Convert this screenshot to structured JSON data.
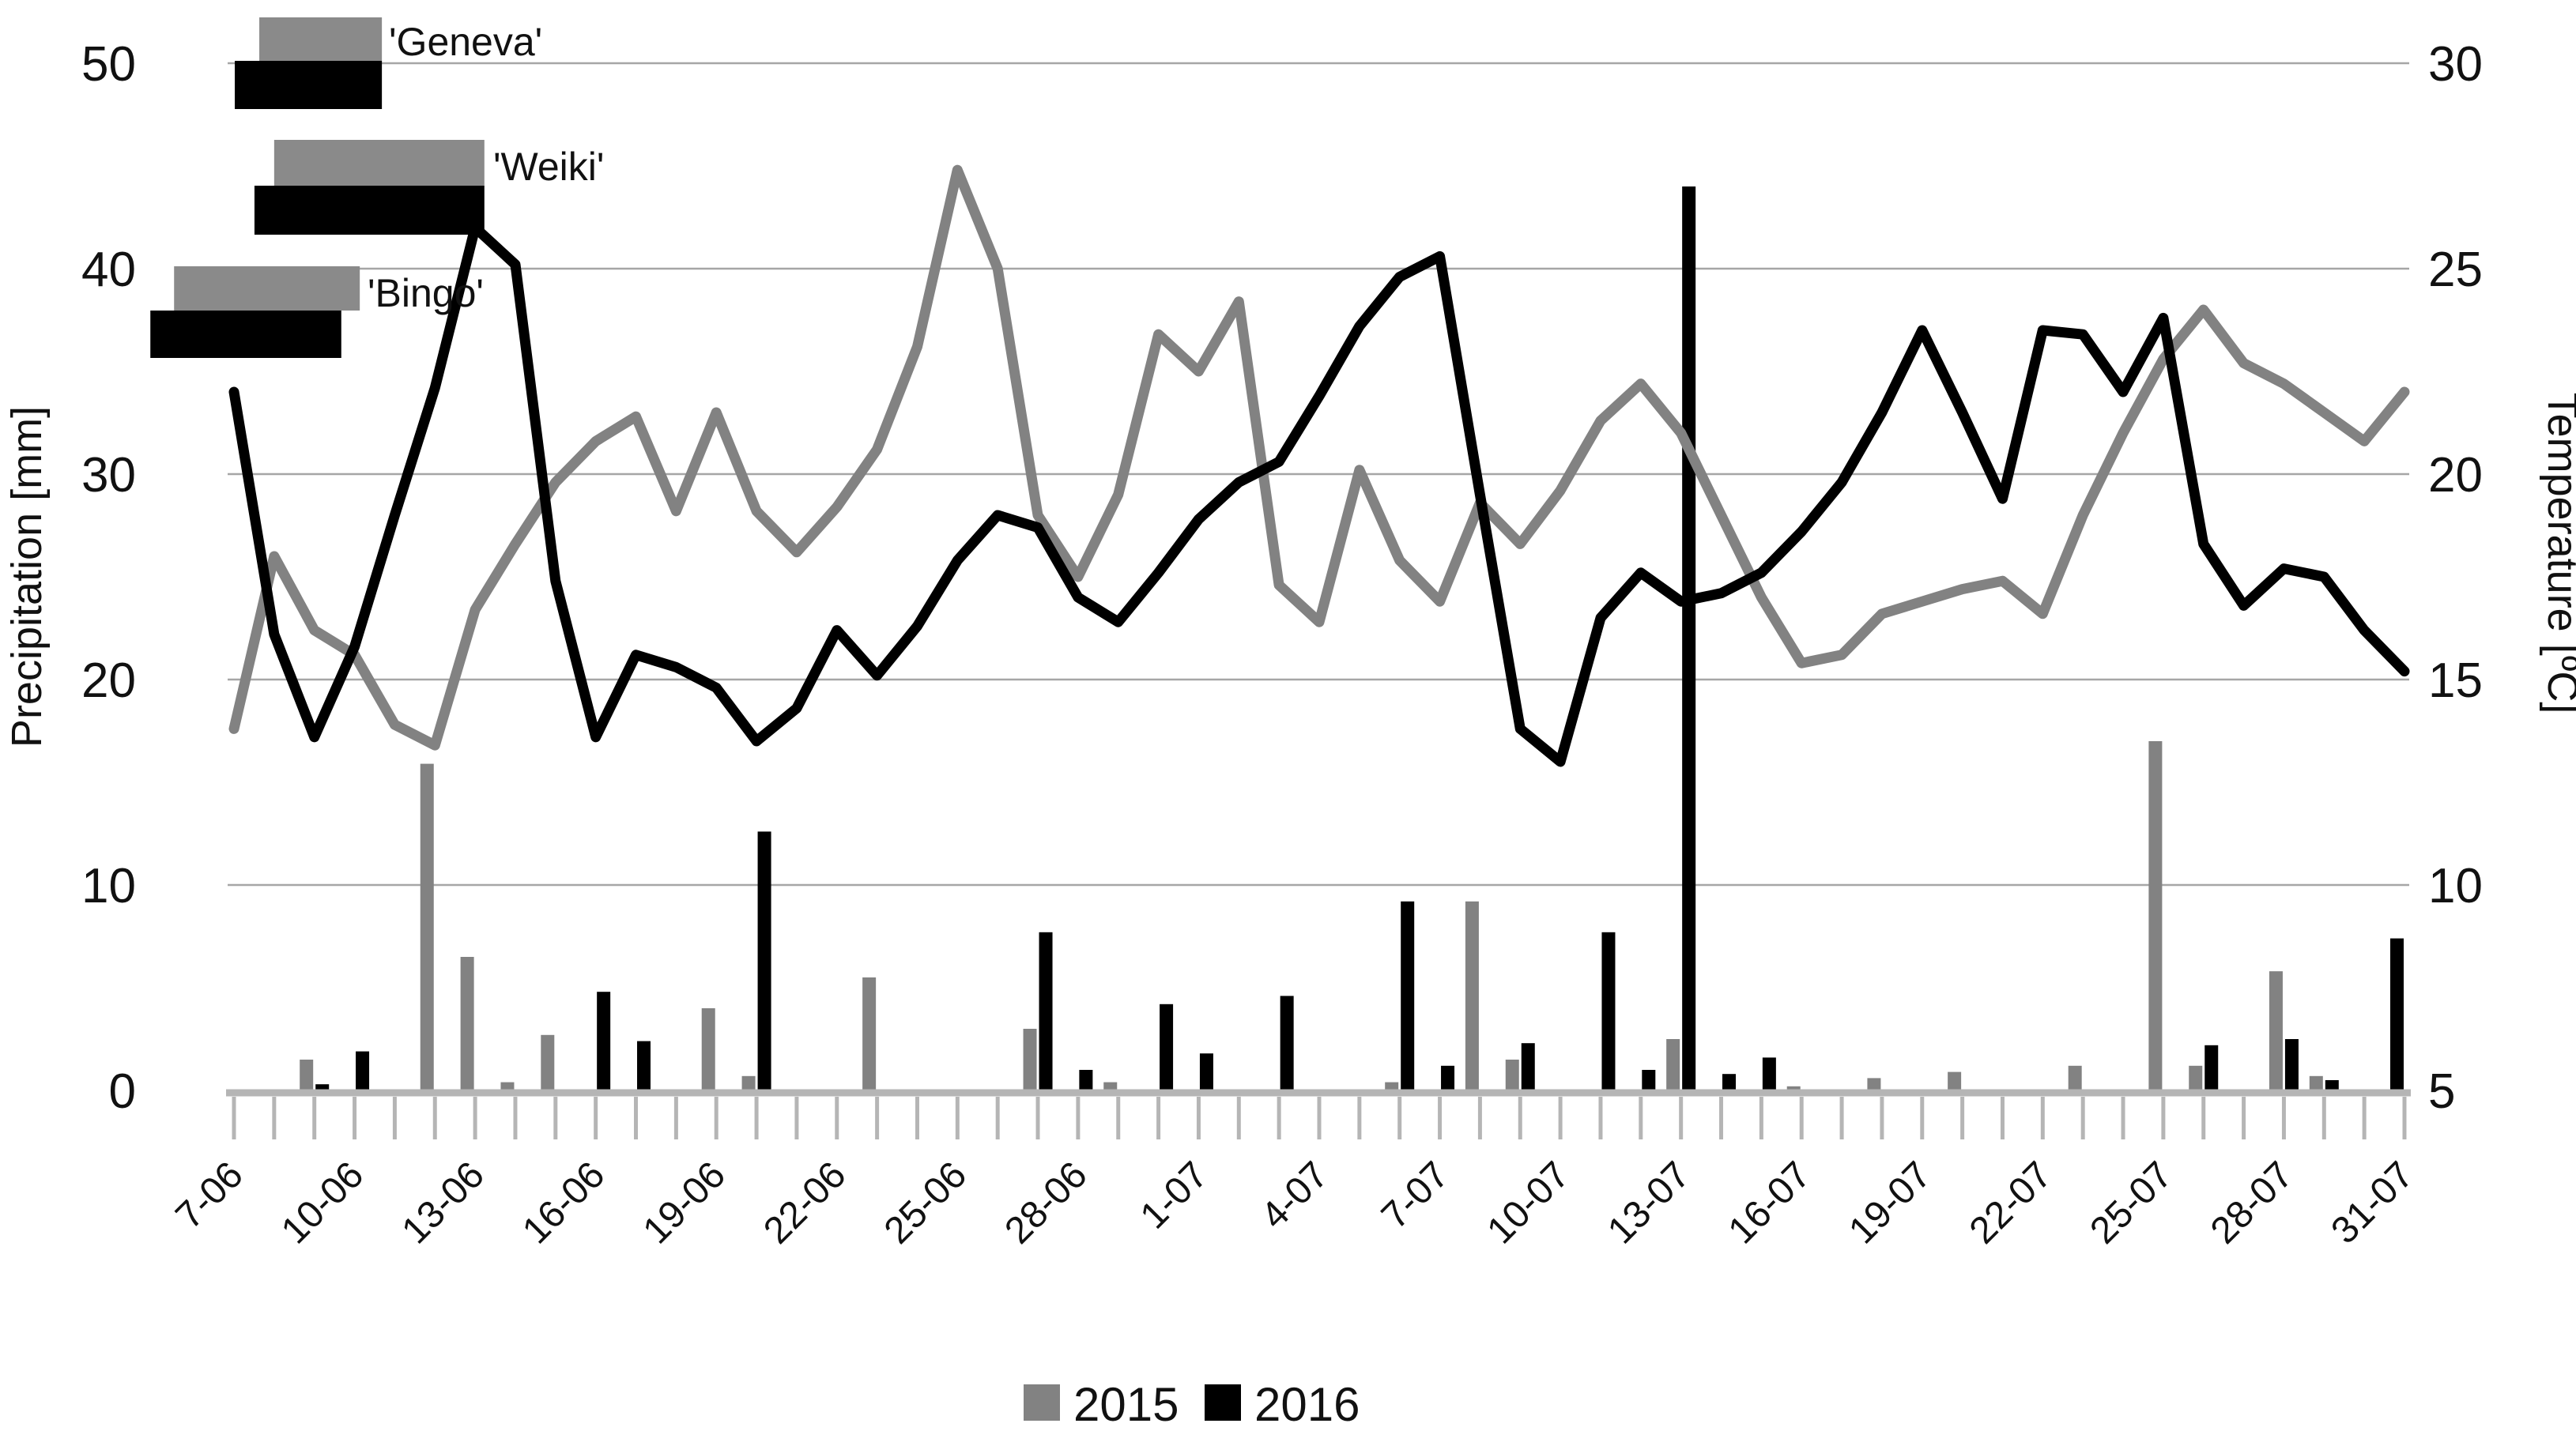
{
  "colors": {
    "series_2015": "#828282",
    "series_2016": "#000000",
    "gridline": "#a6a6a6",
    "axis": "#b5b5b5",
    "background": "#ffffff"
  },
  "legend": {
    "items": [
      {
        "label": "2015",
        "color": "#828282"
      },
      {
        "label": "2016",
        "color": "#000000"
      }
    ]
  },
  "axes": {
    "left_title": "Precipitation [mm]",
    "right_title": "Temperature [ºC]",
    "left_ticks": [
      0,
      10,
      20,
      30,
      40,
      50
    ],
    "right_ticks": [
      5,
      10,
      15,
      20,
      25,
      30
    ],
    "x_label_interval": 3
  },
  "harvest_windows": {
    "note": "horizontal season bars drawn at top of plot; ranges are day offsets from 7-06",
    "varieties": [
      {
        "label": "'Geneva'",
        "row": 0,
        "y2015_range": [
          0.63,
          3.68
        ],
        "y2016_range": [
          0.02,
          3.68
        ]
      },
      {
        "label": "'Weiki'",
        "row": 1,
        "y2015_range": [
          1.0,
          6.23
        ],
        "y2016_range": [
          0.51,
          6.23
        ]
      },
      {
        "label": "'Bingo'",
        "row": 2,
        "y2015_range": [
          -1.49,
          3.13
        ],
        "y2016_range": [
          -2.08,
          2.67
        ]
      }
    ]
  },
  "chart_data": {
    "type": "combo-bar-line",
    "title": "",
    "xlabel": "",
    "ylabel_left": "Precipitation [mm]",
    "ylabel_right": "Temperature [ºC]",
    "ylim_left": [
      0,
      50
    ],
    "ylim_right": [
      5,
      30
    ],
    "grid": true,
    "legend_position": "bottom-center",
    "categories": [
      "7-06",
      "8-06",
      "9-06",
      "10-06",
      "11-06",
      "12-06",
      "13-06",
      "14-06",
      "15-06",
      "16-06",
      "17-06",
      "18-06",
      "19-06",
      "20-06",
      "21-06",
      "22-06",
      "23-06",
      "24-06",
      "25-06",
      "26-06",
      "27-06",
      "28-06",
      "29-06",
      "30-06",
      "1-07",
      "2-07",
      "3-07",
      "4-07",
      "5-07",
      "6-07",
      "7-07",
      "8-07",
      "9-07",
      "10-07",
      "11-07",
      "12-07",
      "13-07",
      "14-07",
      "15-07",
      "16-07",
      "17-07",
      "18-07",
      "19-07",
      "20-07",
      "21-07",
      "22-07",
      "23-07",
      "24-07",
      "25-07",
      "26-07",
      "27-07",
      "28-07",
      "29-07",
      "30-07",
      "31-07"
    ],
    "labeled_categories": [
      "7-06",
      "10-06",
      "13-06",
      "16-06",
      "19-06",
      "22-06",
      "25-06",
      "28-06",
      "1-07",
      "4-07",
      "7-07",
      "10-07",
      "13-07",
      "16-07",
      "19-07",
      "22-07",
      "25-07",
      "28-07",
      "31-07"
    ],
    "temperature_C": {
      "2015": [
        13.8,
        18.0,
        16.2,
        15.6,
        13.9,
        13.4,
        16.7,
        18.3,
        19.8,
        20.8,
        21.4,
        19.1,
        21.5,
        19.1,
        18.1,
        19.2,
        20.6,
        23.1,
        27.4,
        25.0,
        19.0,
        17.5,
        19.5,
        23.4,
        22.5,
        24.2,
        17.3,
        16.4,
        20.1,
        17.9,
        16.9,
        19.3,
        18.3,
        19.6,
        21.3,
        22.2,
        21.0,
        19.0,
        17.0,
        15.4,
        15.6,
        16.6,
        16.9,
        17.2,
        17.4,
        16.6,
        19.0,
        21.0,
        22.8,
        24.0,
        22.7,
        22.2,
        21.5,
        20.8,
        22.0
      ],
      "2016": [
        22.0,
        16.1,
        13.6,
        15.8,
        19.0,
        22.1,
        26.0,
        25.1,
        17.4,
        13.6,
        15.6,
        15.3,
        14.8,
        13.5,
        14.3,
        16.2,
        15.1,
        16.3,
        17.9,
        19.0,
        18.7,
        17.0,
        16.4,
        17.6,
        18.9,
        19.8,
        20.3,
        21.9,
        23.6,
        24.8,
        25.3,
        19.5,
        13.8,
        13.0,
        16.5,
        17.6,
        16.9,
        17.1,
        17.6,
        18.6,
        19.8,
        21.5,
        23.5,
        21.5,
        19.4,
        23.5,
        23.4,
        22.0,
        23.8,
        18.3,
        16.8,
        17.7,
        17.5,
        16.2,
        15.2
      ]
    },
    "precipitation_mm": {
      "2015": [
        0,
        0,
        1.5,
        0,
        0,
        15.9,
        6.5,
        0.4,
        2.7,
        0,
        0,
        0,
        4,
        0.7,
        0,
        0,
        5.5,
        0,
        0,
        0,
        3,
        0,
        0.4,
        0,
        0,
        0,
        0,
        0,
        0,
        0.4,
        0,
        9.2,
        1.5,
        0,
        0,
        0,
        2.5,
        0,
        0,
        0.2,
        0,
        0.6,
        0,
        0.9,
        0,
        0,
        1.2,
        0,
        17,
        1.2,
        0,
        5.8,
        0.7,
        0,
        0
      ],
      "2016": [
        0,
        0,
        0.3,
        1.9,
        0,
        0,
        0,
        0,
        0,
        4.8,
        2.4,
        0,
        0,
        12.6,
        0,
        0,
        0,
        0,
        0,
        0,
        7.7,
        1,
        0,
        4.2,
        1.8,
        0,
        4.6,
        0,
        0,
        9.2,
        1.2,
        0,
        2.3,
        0,
        7.7,
        1,
        44,
        0.8,
        1.6,
        0,
        0,
        0,
        0,
        0,
        0,
        0,
        0,
        0,
        0,
        2.2,
        0,
        2.5,
        0.5,
        0,
        7.4
      ]
    }
  }
}
